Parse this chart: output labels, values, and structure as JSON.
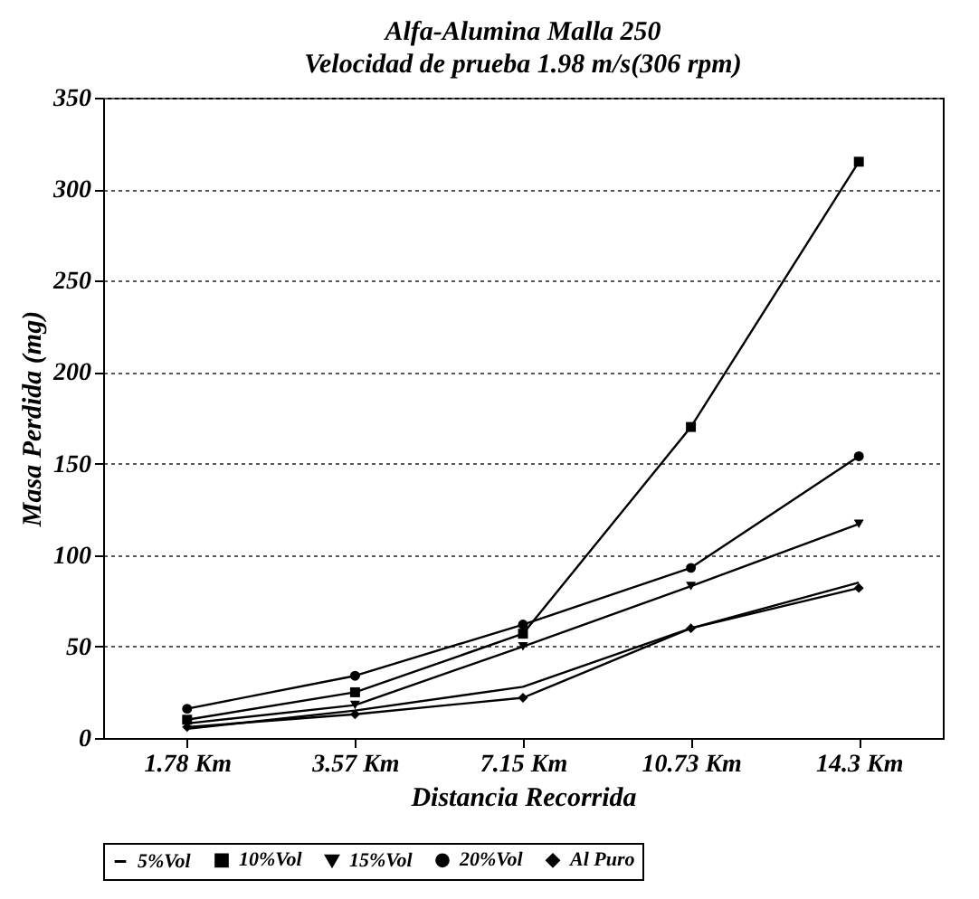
{
  "chart_data": {
    "type": "line",
    "title": "Alfa-Alumina Malla 250",
    "subtitle": "Velocidad de prueba 1.98 m/s(306 rpm)",
    "xlabel": "Distancia Recorrida",
    "ylabel": "Masa Perdida (mg)",
    "categories": [
      "1.78 Km",
      "3.57 Km",
      "7.15 Km",
      "10.73 Km",
      "14.3 Km"
    ],
    "series": [
      {
        "name": "5%Vol",
        "color": "#000000",
        "marker": "none",
        "values": [
          5,
          15,
          28,
          60,
          85
        ]
      },
      {
        "name": "10%Vol",
        "color": "#000000",
        "marker": "square",
        "values": [
          10,
          25,
          57,
          170,
          315
        ]
      },
      {
        "name": "15%Vol",
        "color": "#000000",
        "marker": "triangle",
        "values": [
          8,
          18,
          50,
          83,
          117
        ]
      },
      {
        "name": "20%Vol",
        "color": "#000000",
        "marker": "circle",
        "values": [
          16,
          34,
          62,
          93,
          154
        ]
      },
      {
        "name": "Al Puro",
        "color": "#000000",
        "marker": "diamond",
        "values": [
          6,
          13,
          22,
          60,
          82
        ]
      }
    ],
    "ylim": [
      0,
      350
    ],
    "yticks": [
      0,
      50,
      100,
      150,
      200,
      250,
      300,
      350
    ],
    "grid": "y",
    "legend": "bottom",
    "line_style": "solid"
  }
}
